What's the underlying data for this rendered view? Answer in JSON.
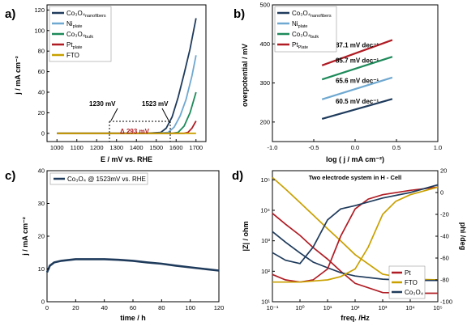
{
  "panels": {
    "a": {
      "letter": "a)",
      "xlabel": "E / mV vs. RHE",
      "ylabel": "j / mA cm⁻²",
      "xticks": [
        "1000",
        "1100",
        "1200",
        "1300",
        "1400",
        "1500",
        "1600",
        "1700"
      ],
      "yticks": [
        "0",
        "20",
        "40",
        "60",
        "80",
        "100",
        "120"
      ],
      "annotation_left": "1230 mV",
      "annotation_right": "1523 mV",
      "annotation_delta": "Δ 293 mV"
    },
    "b": {
      "letter": "b)",
      "xlabel": "log ( j / mA cm⁻²)",
      "ylabel": "overpotential / mV",
      "xticks": [
        "-1.0",
        "-0.5",
        "0.0",
        "0.5",
        "1.0"
      ],
      "yticks": [
        "200",
        "300",
        "400",
        "500"
      ],
      "tafel_labels": [
        "87.1 mV dec⁻¹",
        "85.7 mV dec⁻¹",
        "65.6 mV dec⁻¹",
        "60.5 mV dec⁻¹"
      ]
    },
    "c": {
      "letter": "c)",
      "xlabel": "time / h",
      "ylabel": "j / mA cm⁻²",
      "xticks": [
        "0",
        "20",
        "40",
        "60",
        "80",
        "100",
        "120"
      ],
      "yticks": [
        "0",
        "10",
        "20",
        "30",
        "40"
      ],
      "legend": "Co₃O₄ @ 1523mV vs. RHE"
    },
    "d": {
      "letter": "d)",
      "title": "Two electrode system in H - Cell",
      "xlabel": "freq. /Hz",
      "ylabel_left": "|Z| / ohm",
      "ylabel_right": "phi /deg",
      "xticks": [
        "10⁻¹",
        "10⁰",
        "10¹",
        "10²",
        "10³",
        "10⁴",
        "10⁵"
      ],
      "yticks_left": [
        "10¹",
        "10²",
        "10³",
        "10⁴",
        "10⁵"
      ],
      "yticks_right": [
        "20",
        "0",
        "-20",
        "-40",
        "-60",
        "-80",
        "-100"
      ],
      "legend": [
        "Pt",
        "FTO",
        "Co₃O₄"
      ]
    }
  },
  "colors": {
    "co3o4_nanofibers": "#1f3b5c",
    "ni": "#6fa8d0",
    "co3o4_bulk": "#1e8a5a",
    "pt": "#b01c24",
    "fto": "#c9a000"
  },
  "chart_data": [
    {
      "type": "line",
      "panel": "a",
      "xlabel": "E / mV vs. RHE",
      "ylabel": "j / mA cm⁻²",
      "xlim": [
        950,
        1750
      ],
      "ylim": [
        -8,
        125
      ],
      "legend_placement": "top-left",
      "series": [
        {
          "name": "Co₃O₄ nanofibers",
          "x": [
            1000,
            1450,
            1523,
            1550,
            1580,
            1610,
            1640,
            1670,
            1700
          ],
          "values": [
            0,
            0,
            1,
            5,
            16,
            35,
            58,
            82,
            112
          ]
        },
        {
          "name": "Ni plate",
          "x": [
            1000,
            1500,
            1560,
            1590,
            1620,
            1650,
            1680,
            1700
          ],
          "values": [
            0,
            0,
            1,
            6,
            17,
            33,
            56,
            76
          ]
        },
        {
          "name": "Co₃O₄ bulk",
          "x": [
            1000,
            1580,
            1610,
            1640,
            1670,
            1700
          ],
          "values": [
            0,
            0,
            1,
            7,
            20,
            40
          ]
        },
        {
          "name": "Pt plate",
          "x": [
            1000,
            1640,
            1660,
            1680,
            1700
          ],
          "values": [
            0,
            0,
            1,
            5,
            12
          ]
        },
        {
          "name": "FTO",
          "x": [
            1000,
            1700
          ],
          "values": [
            0,
            0
          ]
        }
      ]
    },
    {
      "type": "line",
      "panel": "b",
      "xlabel": "log ( j / mA cm⁻²)",
      "ylabel": "overpotential / mV",
      "xlim": [
        -1.0,
        1.0
      ],
      "ylim": [
        150,
        500
      ],
      "legend_placement": "top-left",
      "series": [
        {
          "name": "Co₃O₄ nanofibers",
          "x": [
            -0.4,
            0.45
          ],
          "values": [
            208,
            259
          ]
        },
        {
          "name": "Ni plate",
          "x": [
            -0.4,
            0.45
          ],
          "values": [
            258,
            314
          ]
        },
        {
          "name": "Co₃O₄ bulk",
          "x": [
            -0.4,
            0.45
          ],
          "values": [
            309,
            367
          ]
        },
        {
          "name": "Pt plate",
          "x": [
            -0.4,
            0.45
          ],
          "values": [
            345,
            410
          ]
        }
      ]
    },
    {
      "type": "line",
      "panel": "c",
      "xlabel": "time / h",
      "ylabel": "j / mA cm⁻²",
      "xlim": [
        0,
        120
      ],
      "ylim": [
        0,
        40
      ],
      "legend_placement": "top-left",
      "series": [
        {
          "name": "Co₃O₄ @ 1523mV vs. RHE",
          "x": [
            0,
            2,
            5,
            10,
            20,
            30,
            40,
            50,
            60,
            70,
            80,
            90,
            100,
            110,
            120
          ],
          "values": [
            9,
            11,
            12,
            12.5,
            13,
            13,
            13,
            12.8,
            12.5,
            12,
            11.6,
            11,
            10.5,
            10,
            9.5
          ]
        }
      ]
    },
    {
      "type": "line",
      "panel": "d",
      "title": "Two electrode system in H - Cell",
      "xlabel": "freq. /Hz",
      "ylabel": "|Z| / ohm",
      "y2label": "phi /deg",
      "xscale": "log",
      "yscale": "log",
      "xlim": [
        0.1,
        100000
      ],
      "ylim": [
        10,
        200000
      ],
      "y2lim": [
        -100,
        20
      ],
      "legend_placement": "center-right",
      "series": [
        {
          "name": "Pt",
          "axis": "left",
          "x": [
            0.1,
            0.3,
            1,
            3,
            10,
            30,
            100,
            1000,
            10000,
            100000
          ],
          "values": [
            8000,
            3500,
            1500,
            600,
            250,
            100,
            40,
            20,
            19,
            19
          ]
        },
        {
          "name": "FTO",
          "axis": "left",
          "x": [
            0.1,
            0.3,
            1,
            3,
            10,
            30,
            100,
            1000,
            10000,
            100000
          ],
          "values": [
            120000,
            50000,
            18000,
            7000,
            2500,
            1000,
            350,
            80,
            55,
            52
          ]
        },
        {
          "name": "Co₃O₄",
          "axis": "left",
          "x": [
            0.1,
            0.3,
            1,
            3,
            10,
            30,
            100,
            1000,
            10000,
            100000
          ],
          "values": [
            2000,
            900,
            400,
            200,
            130,
            90,
            70,
            55,
            50,
            50
          ]
        },
        {
          "name": "Pt",
          "axis": "right",
          "x": [
            0.1,
            0.3,
            1,
            3,
            10,
            30,
            100,
            300,
            1000,
            10000,
            100000
          ],
          "values": [
            -75,
            -80,
            -82,
            -80,
            -70,
            -40,
            -15,
            -6,
            -2,
            2,
            5
          ]
        },
        {
          "name": "FTO",
          "axis": "right",
          "x": [
            0.1,
            1,
            10,
            30,
            100,
            300,
            1000,
            3000,
            10000,
            100000
          ],
          "values": [
            -82,
            -82,
            -80,
            -77,
            -70,
            -50,
            -20,
            -8,
            -2,
            5
          ]
        },
        {
          "name": "Co₃O₄",
          "axis": "right",
          "x": [
            0.1,
            0.3,
            1,
            3,
            10,
            30,
            100,
            1000,
            10000,
            100000
          ],
          "values": [
            -55,
            -62,
            -65,
            -50,
            -25,
            -15,
            -12,
            -5,
            0,
            7
          ]
        }
      ]
    }
  ],
  "legends": {
    "a": [
      {
        "main": "Co₃O₄",
        "sub": "nanofibers"
      },
      {
        "main": "Ni",
        "sub": "plate"
      },
      {
        "main": "Co₃O₄",
        "sub": "bulk"
      },
      {
        "main": "Pt",
        "sub": "plate"
      },
      {
        "main": "FTO",
        "sub": ""
      }
    ],
    "b": [
      {
        "main": "Co₃O₄",
        "sub": "nanofibers"
      },
      {
        "main": "Ni",
        "sub": "plate"
      },
      {
        "main": "Co₃O₄",
        "sub": "bulk"
      },
      {
        "main": "Pt",
        "sub": "Plate"
      }
    ]
  }
}
